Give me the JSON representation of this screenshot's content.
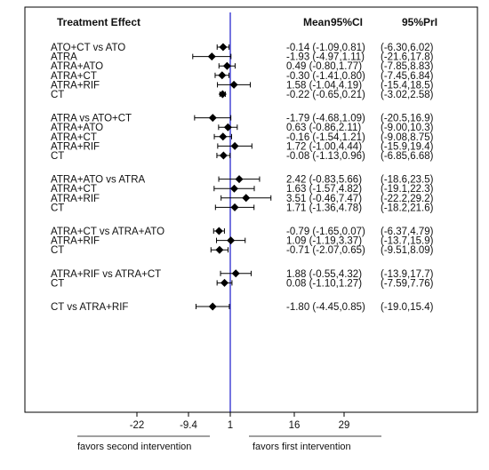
{
  "header": {
    "title": "Treatment Effect",
    "mean_label": "Mean",
    "ci_label": "95%CI",
    "pri_label": "95%PrI"
  },
  "axis": {
    "ticks": [
      "-22",
      "-9.4",
      "1",
      "16",
      "29"
    ],
    "left_caption": "favors second intervention",
    "right_caption": "favors first intervention"
  },
  "chart_data": {
    "type": "forest",
    "null_line": 1,
    "groups": [
      {
        "comparator": "ATO",
        "rows": [
          {
            "label": "ATO+CT   vs   ATO",
            "mean": -0.14,
            "ci": [
              -1.09,
              0.81
            ],
            "ci_text": "-0.14 (-1.09,0.81)",
            "pri_text": "(-6.30,6.02)"
          },
          {
            "label": "ATRA",
            "mean": -1.93,
            "ci": [
              -4.97,
              1.11
            ],
            "ci_text": "-1.93 (-4.97,1.11)",
            "pri_text": "(-21.6,17.8)"
          },
          {
            "label": "ATRA+ATO",
            "mean": 0.49,
            "ci": [
              -0.8,
              1.77
            ],
            "ci_text": "0.49 (-0.80,1.77)",
            "pri_text": "(-7.85,8.83)"
          },
          {
            "label": "ATRA+CT",
            "mean": -0.3,
            "ci": [
              -1.41,
              0.8
            ],
            "ci_text": "-0.30 (-1.41,0.80)",
            "pri_text": "(-7.45,6.84)"
          },
          {
            "label": "ATRA+RIF",
            "mean": 1.58,
            "ci": [
              -1.04,
              4.19
            ],
            "ci_text": "1.58 (-1.04,4.19)",
            "pri_text": "(-15.4,18.5)"
          },
          {
            "label": "CT",
            "mean": -0.22,
            "ci": [
              -0.65,
              0.21
            ],
            "ci_text": "-0.22 (-0.65,0.21)",
            "pri_text": "(-3.02,2.58)"
          }
        ]
      },
      {
        "comparator": "ATO+CT",
        "rows": [
          {
            "label": "ATRA          vs  ATO+CT",
            "mean": -1.79,
            "ci": [
              -4.68,
              1.09
            ],
            "ci_text": "-1.79 (-4.68,1.09)",
            "pri_text": "(-20.5,16.9)"
          },
          {
            "label": "ATRA+ATO",
            "mean": 0.63,
            "ci": [
              -0.86,
              2.11
            ],
            "ci_text": "0.63 (-0.86,2.11)",
            "pri_text": "(-9.00,10.3)"
          },
          {
            "label": "ATRA+CT",
            "mean": -0.16,
            "ci": [
              -1.54,
              1.21
            ],
            "ci_text": "-0.16 (-1.54,1.21)",
            "pri_text": "(-9.08,8.75)"
          },
          {
            "label": "ATRA+RIF",
            "mean": 1.72,
            "ci": [
              -1.0,
              4.44
            ],
            "ci_text": "1.72 (-1.00,4.44)",
            "pri_text": "(-15.9,19.4)"
          },
          {
            "label": "CT",
            "mean": -0.08,
            "ci": [
              -1.13,
              0.96
            ],
            "ci_text": "-0.08 (-1.13,0.96)",
            "pri_text": "(-6.85,6.68)"
          }
        ]
      },
      {
        "comparator": "ATRA",
        "rows": [
          {
            "label": "ATRA+ATO vs  ATRA",
            "mean": 2.42,
            "ci": [
              -0.83,
              5.66
            ],
            "ci_text": "2.42 (-0.83,5.66)",
            "pri_text": "(-18.6,23.5)"
          },
          {
            "label": "ATRA+CT",
            "mean": 1.63,
            "ci": [
              -1.57,
              4.82
            ],
            "ci_text": "1.63 (-1.57,4.82)",
            "pri_text": "(-19.1,22.3)"
          },
          {
            "label": "ATRA+RIF",
            "mean": 3.51,
            "ci": [
              -0.46,
              7.47
            ],
            "ci_text": "3.51 (-0.46,7.47)",
            "pri_text": "(-22.2,29.2)"
          },
          {
            "label": "CT",
            "mean": 1.71,
            "ci": [
              -1.36,
              4.78
            ],
            "ci_text": "1.71 (-1.36,4.78)",
            "pri_text": "(-18.2,21.6)"
          }
        ]
      },
      {
        "comparator": "ATRA+ATO",
        "rows": [
          {
            "label": "ATRA+CT   vs  ATRA+ATO",
            "mean": -0.79,
            "ci": [
              -1.65,
              0.07
            ],
            "ci_text": "-0.79 (-1.65,0.07)",
            "pri_text": "(-6.37,4.79)"
          },
          {
            "label": "ATRA+RIF",
            "mean": 1.09,
            "ci": [
              -1.19,
              3.37
            ],
            "ci_text": "1.09 (-1.19,3.37)",
            "pri_text": "(-13.7,15.9)"
          },
          {
            "label": "CT",
            "mean": -0.71,
            "ci": [
              -2.07,
              0.65
            ],
            "ci_text": "-0.71 (-2.07,0.65)",
            "pri_text": "(-9.51,8.09)"
          }
        ]
      },
      {
        "comparator": "ATRA+CT",
        "rows": [
          {
            "label": "ATRA+RIF vs  ATRA+CT",
            "mean": 1.88,
            "ci": [
              -0.55,
              4.32
            ],
            "ci_text": "1.88 (-0.55,4.32)",
            "pri_text": "(-13.9,17.7)"
          },
          {
            "label": "CT",
            "mean": 0.08,
            "ci": [
              -1.1,
              1.27
            ],
            "ci_text": "0.08 (-1.10,1.27)",
            "pri_text": "(-7.59,7.76)"
          }
        ]
      },
      {
        "comparator": "ATRA+RIF",
        "rows": [
          {
            "label": "CT             vs ATRA+RIF",
            "mean": -1.8,
            "ci": [
              -4.45,
              0.85
            ],
            "ci_text": "-1.80 (-4.45,0.85)",
            "pri_text": "(-19.0,15.4)"
          }
        ]
      }
    ]
  }
}
